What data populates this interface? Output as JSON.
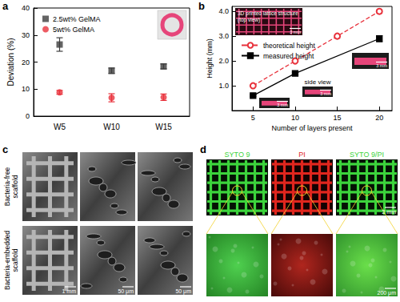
{
  "chart_data": [
    {
      "panel": "a",
      "type": "scatter",
      "categories": [
        "W5",
        "W10",
        "W15"
      ],
      "y_label": "Deviation (%)",
      "ylim": [
        0,
        40
      ],
      "yticks": [
        0,
        10,
        20,
        30,
        40
      ],
      "grid": false,
      "legend": "upper left",
      "series": [
        {
          "name": "2.5wt% GelMA",
          "color": "#3d3d3d",
          "marker": "square",
          "values": [
            26.5,
            16.8,
            18.4
          ],
          "errors": [
            2.5,
            1.0,
            0.9
          ]
        },
        {
          "name": "5wt% GelMA",
          "color": "#e8323c",
          "marker": "circle",
          "values": [
            8.8,
            6.8,
            7.0
          ],
          "errors": [
            0.7,
            1.5,
            1.2
          ]
        }
      ]
    },
    {
      "panel": "b",
      "type": "line",
      "x_label": "Number of layers present",
      "y_label": "Height (mm)",
      "xlim": [
        2.5,
        21.5
      ],
      "xticks": [
        5,
        10,
        15,
        20
      ],
      "ylim": [
        0,
        4.2
      ],
      "yticks": [
        {
          "value": 1,
          "label": "1.0"
        },
        {
          "value": 2,
          "label": "2.0"
        },
        {
          "value": 3,
          "label": "3.0"
        },
        {
          "value": 4,
          "label": "4.0"
        }
      ],
      "grid": false,
      "legend": "upper left",
      "series": [
        {
          "name": "theoretical height",
          "color": "#e8323c",
          "marker": "hollow_circle",
          "line_style": "dashed",
          "x": [
            5,
            10,
            15,
            20
          ],
          "values": [
            1,
            2,
            3,
            4
          ]
        },
        {
          "name": "measured height",
          "color": "#000000",
          "marker": "square",
          "line_style": "solid",
          "x": [
            5,
            10,
            20
          ],
          "values": [
            0.6,
            1.5,
            2.9
          ],
          "errors": [
            0.03,
            0.04,
            0.12
          ]
        }
      ],
      "insets": [
        {
          "title": [
            "3D printed lattice structure",
            "(top view)"
          ],
          "scale_bar": "3 mm"
        },
        {
          "scale_bar": "3 mm"
        },
        {
          "title": [
            "side view"
          ],
          "scale_bar": "3 mm"
        },
        {
          "scale_bar": "3 mm"
        }
      ]
    }
  ],
  "panel_c": {
    "panel": "c",
    "rows": [
      {
        "label": [
          "Bacteria-free",
          "scaffold"
        ]
      },
      {
        "label": [
          "Bacteria-embedded",
          "scaffold"
        ],
        "scale_bars": [
          "1 mm",
          "50 μm",
          "50 μm"
        ]
      }
    ]
  },
  "panel_d": {
    "panel": "d",
    "channels": [
      {
        "label": "SYTO 9",
        "color": "#3cd43c"
      },
      {
        "label": "PI",
        "color": "#e0261e"
      },
      {
        "label": "SYTO 9/PI",
        "color": "#3cd43c"
      }
    ],
    "scale_bars": {
      "overview": "2 mm",
      "zoom": "200 μm"
    }
  }
}
